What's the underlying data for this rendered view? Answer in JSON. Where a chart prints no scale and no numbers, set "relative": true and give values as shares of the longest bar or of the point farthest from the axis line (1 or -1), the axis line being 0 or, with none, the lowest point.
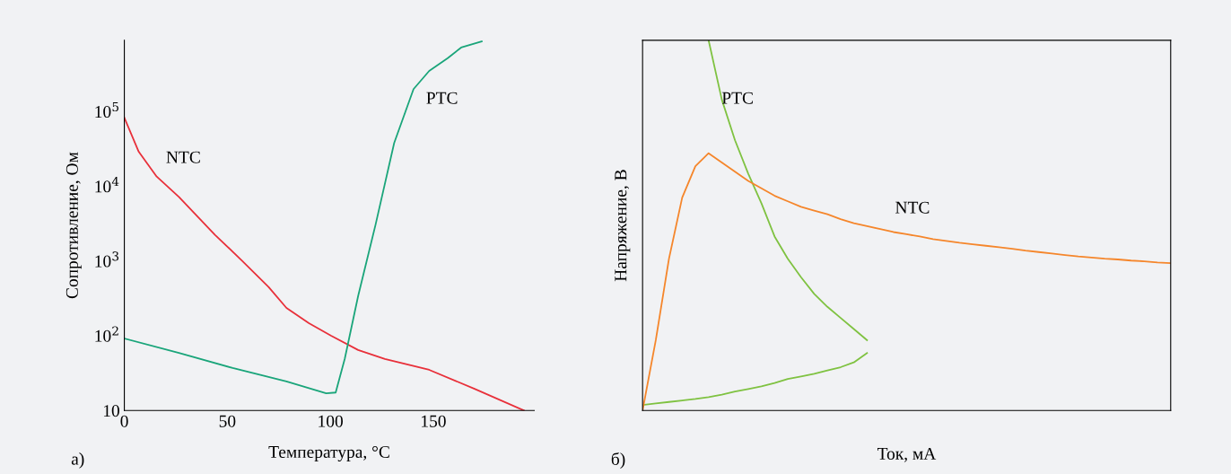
{
  "chart_data": [
    {
      "type": "line",
      "xlabel": "Температура, °C",
      "ylabel": "Сопротивление, Ом",
      "log": "y",
      "grid": false,
      "legend": false,
      "xlim": [
        0,
        199
      ],
      "xticks": [
        0,
        50,
        100,
        150
      ],
      "ylim": [
        10,
        900000
      ],
      "yticks": [
        10,
        {
          "value": 100,
          "label": "10$^{2}$"
        },
        {
          "value": 1000,
          "label": "10$^{3}$"
        },
        {
          "value": 10000,
          "label": "10$^{4}$"
        },
        {
          "value": 100000,
          "label": "10$^{5}$"
        }
      ],
      "series": [
        {
          "name": "NTC",
          "color": "#e8303a",
          "x": [
            0,
            7,
            15.7,
            26.5,
            44,
            57,
            70,
            78.7,
            89.6,
            100.4,
            113.5,
            126.5,
            148,
            170,
            194
          ],
          "values": [
            83000,
            29000,
            13500,
            7200,
            2240,
            1020,
            450,
            236,
            147,
            100,
            64.5,
            49,
            35,
            19.5,
            10
          ]
        },
        {
          "name": "PTC",
          "color": "#1aa57a",
          "x": [
            0,
            26.5,
            52.6,
            78.7,
            98,
            102.6,
            107,
            113.5,
            122,
            131,
            140.4,
            148,
            157,
            163.5,
            173.5
          ],
          "values": [
            92,
            59,
            37,
            24.5,
            17,
            17.4,
            49,
            340,
            3100,
            38000,
            200000,
            350000,
            520000,
            720000,
            870000
          ]
        }
      ],
      "annotations": [
        "а)"
      ]
    },
    {
      "type": "line",
      "xlabel": "Ток, мА",
      "ylabel": "Напряжение, В",
      "relative": true,
      "grid": false,
      "legend": false,
      "categories": [
        null,
        null,
        null,
        null,
        null,
        null,
        null,
        null,
        null,
        null,
        null,
        null,
        null,
        null,
        null,
        null,
        null,
        null,
        null,
        null,
        null,
        null,
        null,
        null,
        null,
        null,
        null,
        null,
        null,
        null,
        null,
        null,
        null,
        null,
        null,
        null,
        null,
        null,
        null,
        null,
        null
      ],
      "series": [
        {
          "name": "PTC",
          "color": "#7fc241",
          "values": [
            null,
            null,
            null,
            null,
            null,
            1.0,
            0.84,
            0.73,
            0.64,
            0.56,
            0.47,
            0.41,
            0.36,
            0.315,
            0.28,
            0.25,
            0.22,
            0.19,
            null,
            null,
            null,
            null,
            null,
            null,
            null,
            null,
            null,
            null,
            null,
            null,
            null,
            null,
            null,
            null,
            null,
            null,
            null,
            null,
            null,
            null,
            null
          ]
        },
        {
          "color": "#7fc241",
          "values": [
            0.015,
            0.019,
            0.023,
            0.027,
            0.031,
            0.036,
            0.043,
            0.051,
            0.058,
            0.065,
            0.074,
            0.085,
            0.092,
            0.099,
            0.108,
            0.117,
            0.13,
            0.155,
            null,
            null,
            null,
            null,
            null,
            null,
            null,
            null,
            null,
            null,
            null,
            null,
            null,
            null,
            null,
            null,
            null,
            null,
            null,
            null,
            null,
            null,
            null
          ]
        },
        {
          "name": "NTC",
          "color": "#f5862b",
          "values": [
            0,
            0.19,
            0.41,
            0.575,
            0.66,
            0.695,
            0.67,
            0.645,
            0.62,
            0.6,
            0.58,
            0.565,
            0.55,
            0.54,
            0.53,
            0.517,
            0.506,
            0.498,
            0.49,
            0.482,
            0.476,
            0.47,
            0.463,
            0.458,
            0.453,
            0.449,
            0.445,
            0.441,
            0.437,
            0.432,
            0.428,
            0.424,
            0.42,
            0.416,
            0.413,
            0.41,
            0.408,
            0.405,
            0.403,
            0.4,
            0.398
          ]
        }
      ],
      "annotations": [
        "б)"
      ]
    }
  ]
}
